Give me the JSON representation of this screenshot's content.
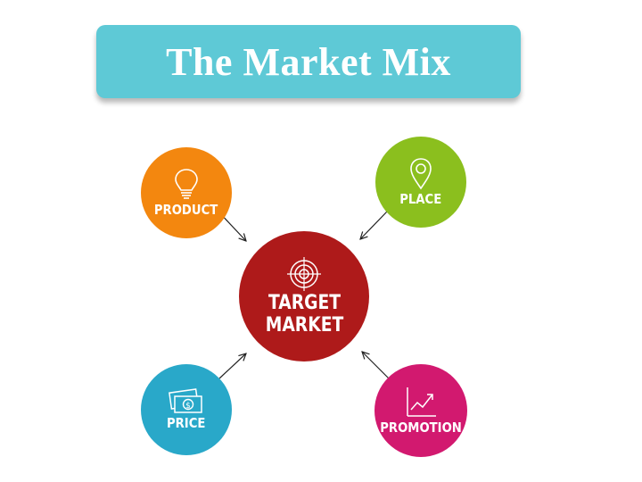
{
  "title": "The Market Mix",
  "center": {
    "label": "TARGET\nMARKET",
    "icon": "target-icon",
    "color": "#ae1a1a"
  },
  "nodes": {
    "product": {
      "label": "PRODUCT",
      "icon": "lightbulb-icon",
      "color": "#f3870f"
    },
    "place": {
      "label": "PLACE",
      "icon": "location-pin-icon",
      "color": "#8bbf1e"
    },
    "price": {
      "label": "PRICE",
      "icon": "money-icon",
      "color": "#29a8c9"
    },
    "promotion": {
      "label": "PROMOTION",
      "icon": "growth-chart-icon",
      "color": "#d2196f"
    }
  },
  "colors": {
    "banner": "#5ec9d6",
    "arrow": "#222222"
  }
}
